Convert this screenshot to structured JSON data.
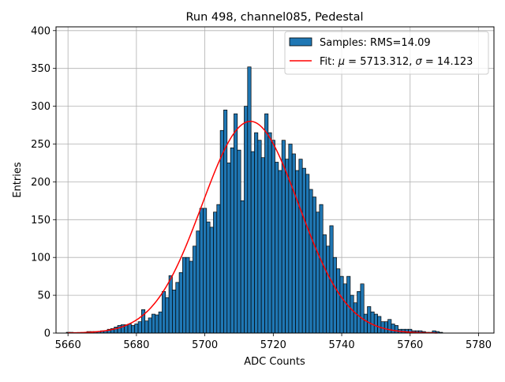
{
  "chart_data": {
    "type": "bar",
    "title": "Run 498, channel085, Pedestal",
    "xlabel": "ADC Counts",
    "ylabel": "Entries",
    "xlim": [
      5656.5,
      5784.5
    ],
    "ylim": [
      0,
      405
    ],
    "xticks": [
      5660,
      5680,
      5700,
      5720,
      5740,
      5760,
      5780
    ],
    "yticks": [
      0,
      50,
      100,
      150,
      200,
      250,
      300,
      350,
      400
    ],
    "grid": true,
    "legend_placement": "top-right",
    "bin_width": 1,
    "bin_start": 5660,
    "series": [
      {
        "name": "Samples: RMS=14.09",
        "kind": "histogram",
        "color": "#1f77b4",
        "values": [
          1,
          1,
          0,
          0,
          0,
          0,
          2,
          2,
          2,
          2,
          3,
          3,
          5,
          6,
          8,
          10,
          11,
          11,
          12,
          10,
          12,
          15,
          31,
          16,
          20,
          25,
          24,
          28,
          55,
          47,
          76,
          57,
          67,
          80,
          100,
          100,
          95,
          115,
          135,
          165,
          165,
          147,
          140,
          160,
          170,
          268,
          295,
          225,
          245,
          290,
          242,
          175,
          300,
          352,
          240,
          265,
          255,
          232,
          290,
          265,
          255,
          226,
          215,
          255,
          230,
          250,
          237,
          215,
          230,
          218,
          210,
          190,
          180,
          160,
          170,
          130,
          115,
          142,
          100,
          85,
          75,
          65,
          75,
          50,
          40,
          55,
          65,
          25,
          35,
          28,
          25,
          22,
          15,
          15,
          18,
          12,
          10,
          5,
          5,
          5,
          5,
          3,
          3,
          3,
          2,
          1,
          1,
          3,
          2,
          1,
          0,
          0,
          0,
          0,
          0,
          0,
          0,
          0,
          0
        ]
      },
      {
        "name": "Fit: μ = 5713.312, σ = 14.123",
        "kind": "gaussian-fit",
        "color": "#ff0000",
        "mu": 5713.312,
        "sigma": 14.123,
        "amplitude": 280,
        "x_range": [
          5660,
          5768
        ]
      }
    ]
  },
  "legend": {
    "samples_label": "Samples: RMS=14.09",
    "fit_prefix": "Fit: ",
    "mu_symbol": "μ",
    "mu_text": " = 5713.312, ",
    "sigma_symbol": "σ",
    "sigma_text": " = 14.123"
  }
}
